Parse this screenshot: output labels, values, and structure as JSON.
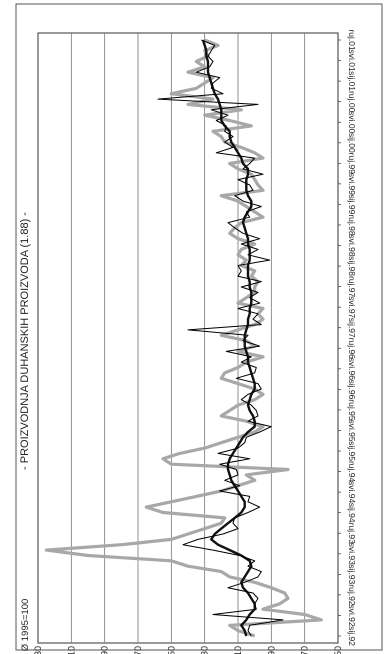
{
  "chart_data": {
    "type": "line",
    "title": "- PROIZVODNJA DUHANSKIH PROIZVODA (1.88) -",
    "base_note": "Ø 1995=100",
    "xlabel": "",
    "ylabel": "",
    "ylim": [
      50,
      230
    ],
    "yticks": [
      50,
      70,
      90,
      110,
      130,
      150,
      170,
      190,
      210,
      230
    ],
    "grid": true,
    "orientation": "rotated-90",
    "x_ticks": [
      "sij.92",
      "svi.92",
      "ruj.92",
      "sij.93",
      "svi.93",
      "ruj.93",
      "sij.94",
      "svi.94",
      "ruj.94",
      "sij.95",
      "svi.95",
      "ruj.95",
      "sij.96",
      "svi.96",
      "ruj.96",
      "sij.97",
      "svi.97",
      "ruj.97",
      "sij.98",
      "svi.98",
      "ruj.98",
      "sij.99",
      "svi.99",
      "ruj.99",
      "sij.00",
      "svi.00",
      "ruj.00",
      "sij.01",
      "svi.01",
      "ruj.01"
    ],
    "series": [
      {
        "role": "original",
        "color": "#a8a8a8",
        "values": [
          100,
          110,
          115,
          60,
          70,
          95,
          85,
          80,
          82,
          90,
          100,
          115,
          120,
          140,
          150,
          200,
          225,
          180,
          150,
          140,
          130,
          120,
          118,
          155,
          165,
          150,
          135,
          120,
          110,
          100,
          105,
          80,
          150,
          155,
          145,
          130,
          120,
          110,
          100,
          95,
          105,
          120,
          115,
          110,
          100,
          95,
          100,
          110,
          120,
          118,
          110,
          105,
          95,
          110,
          100,
          105,
          120,
          110,
          100,
          95,
          98,
          95,
          110,
          105,
          100,
          100,
          98,
          102,
          100,
          108,
          105,
          110,
          108,
          100,
          110,
          115,
          112,
          108,
          95,
          100,
          105,
          110,
          120,
          95,
          98,
          100,
          102,
          110,
          115,
          95,
          100,
          108,
          118,
          120,
          125,
          102,
          115,
          130,
          108,
          140,
          125,
          150,
          135,
          130,
          125,
          140,
          130,
          135,
          128,
          130,
          122,
          130
        ]
      },
      {
        "role": "trend",
        "color": "#111111",
        "values": [
          105,
          106,
          108,
          105,
          103,
          100,
          100,
          102,
          104,
          107,
          108,
          106,
          104,
          102,
          103,
          108,
          115,
          122,
          126,
          124,
          120,
          116,
          112,
          108,
          106,
          106,
          108,
          110,
          112,
          114,
          115,
          116,
          116,
          115,
          113,
          111,
          109,
          107,
          104,
          100,
          100,
          101,
          103,
          104,
          103,
          102,
          100,
          100,
          101,
          102,
          103,
          104,
          104,
          105,
          106,
          106,
          106,
          105,
          104,
          104,
          103,
          103,
          102,
          102,
          102,
          103,
          103,
          104,
          104,
          104,
          103,
          103,
          103,
          104,
          104,
          105,
          106,
          107,
          106,
          104,
          102,
          102,
          104,
          105,
          105,
          105,
          104,
          104,
          107,
          108,
          110,
          112,
          114,
          115,
          115,
          118,
          120,
          120,
          120,
          121,
          122,
          124,
          125,
          126,
          127,
          128,
          128,
          128,
          129,
          129,
          130,
          131
        ]
      },
      {
        "role": "seasonally-adjusted",
        "color": "#000000",
        "values": [
          102,
          104,
          103,
          83,
          125,
          99,
          100,
          98,
          101,
          116,
          106,
          98,
          96,
          104,
          100,
          109,
          125,
          143,
          134,
          119,
          110,
          113,
          112,
          104,
          97,
          104,
          103,
          121,
          109,
          118,
          110,
          111,
          121,
          103,
          122,
          110,
          106,
          105,
          97,
          90,
          104,
          98,
          99,
          102,
          108,
          104,
          96,
          98,
          111,
          100,
          99,
          108,
          102,
          117,
          97,
          107,
          104,
          140,
          96,
          101,
          98,
          110,
          97,
          103,
          98,
          108,
          96,
          110,
          108,
          110,
          91,
          104,
          98,
          108,
          97,
          107,
          112,
          116,
          103,
          105,
          96,
          107,
          112,
          101,
          103,
          110,
          95,
          107,
          103,
          100,
          123,
          113,
          118,
          113,
          118,
          117,
          123,
          116,
          126,
          98,
          158,
          119,
          126,
          125,
          121,
          135,
          127,
          125,
          128,
          126,
          124,
          132
        ]
      }
    ]
  }
}
